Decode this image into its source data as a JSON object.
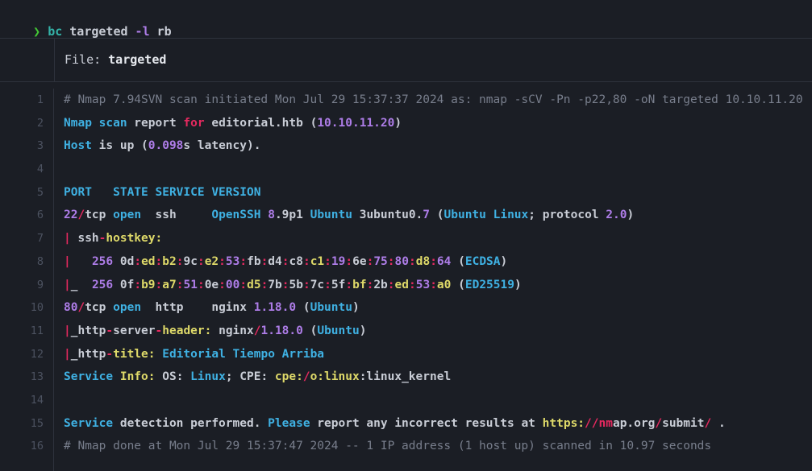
{
  "colors": {
    "background": "#1b1e25",
    "border": "#2e323c",
    "white": "#c9cdd6",
    "gray": "#787e8c",
    "dim": "#4c5260",
    "cyan": "#3fb1e3",
    "purple": "#ae7de8",
    "pink": "#e5295f",
    "yellow": "#ded969",
    "teal": "#34b3a8",
    "green": "#43c735"
  },
  "prompt": {
    "symbol": "❯ ",
    "tokens": [
      [
        "teal",
        "bc "
      ],
      [
        "white",
        "targeted",
        "u"
      ],
      [
        "purple",
        " -l"
      ],
      [
        "white",
        " rb"
      ]
    ]
  },
  "header": {
    "label": "File:",
    "filename": "targeted"
  },
  "code": {
    "lines": [
      {
        "n": "1",
        "comment": true,
        "tokens": [
          [
            "gray",
            "# Nmap 7.94SVN scan initiated Mon Jul 29 15:37:37 2024 as: nmap -sCV -Pn -p22,80 -oN targeted 10.10.11.20"
          ]
        ]
      },
      {
        "n": "2",
        "comment": false,
        "tokens": [
          [
            "cyan",
            "Nmap scan"
          ],
          [
            "white",
            " report "
          ],
          [
            "pink",
            "for"
          ],
          [
            "white",
            " editorial.htb ("
          ],
          [
            "purple",
            "10.10.11.20"
          ],
          [
            "white",
            ")"
          ]
        ]
      },
      {
        "n": "3",
        "comment": false,
        "tokens": [
          [
            "cyan",
            "Host"
          ],
          [
            "white",
            " is up ("
          ],
          [
            "purple",
            "0.098"
          ],
          [
            "white",
            "s latency)."
          ]
        ]
      },
      {
        "n": "4",
        "comment": false,
        "tokens": []
      },
      {
        "n": "5",
        "comment": false,
        "tokens": [
          [
            "cyan",
            "PORT   STATE SERVICE VERSION"
          ]
        ]
      },
      {
        "n": "6",
        "comment": false,
        "tokens": [
          [
            "purple",
            "22"
          ],
          [
            "pink",
            "/"
          ],
          [
            "white",
            "tcp "
          ],
          [
            "cyan",
            "open"
          ],
          [
            "white",
            "  ssh     "
          ],
          [
            "cyan",
            "OpenSSH"
          ],
          [
            "white",
            " "
          ],
          [
            "purple",
            "8"
          ],
          [
            "white",
            ".9p1 "
          ],
          [
            "cyan",
            "Ubuntu"
          ],
          [
            "white",
            " 3ubuntu0."
          ],
          [
            "purple",
            "7"
          ],
          [
            "white",
            " ("
          ],
          [
            "cyan",
            "Ubuntu Linux"
          ],
          [
            "white",
            "; protocol "
          ],
          [
            "purple",
            "2.0"
          ],
          [
            "white",
            ")"
          ]
        ]
      },
      {
        "n": "7",
        "comment": false,
        "tokens": [
          [
            "pink",
            "|"
          ],
          [
            "white",
            " ssh"
          ],
          [
            "pink",
            "-"
          ],
          [
            "yellow",
            "hostkey:"
          ]
        ]
      },
      {
        "n": "8",
        "comment": false,
        "tokens": [
          [
            "pink",
            "|"
          ],
          [
            "white",
            "   "
          ],
          [
            "purple",
            "256"
          ],
          [
            "white",
            " 0d"
          ],
          [
            "pink",
            ":"
          ],
          [
            "yellow",
            "ed"
          ],
          [
            "pink",
            ":"
          ],
          [
            "yellow",
            "b2"
          ],
          [
            "pink",
            ":"
          ],
          [
            "white",
            "9c"
          ],
          [
            "pink",
            ":"
          ],
          [
            "yellow",
            "e2"
          ],
          [
            "pink",
            ":"
          ],
          [
            "purple",
            "53"
          ],
          [
            "pink",
            ":"
          ],
          [
            "white",
            "fb"
          ],
          [
            "pink",
            ":"
          ],
          [
            "white",
            "d4"
          ],
          [
            "pink",
            ":"
          ],
          [
            "white",
            "c8"
          ],
          [
            "pink",
            ":"
          ],
          [
            "yellow",
            "c1"
          ],
          [
            "pink",
            ":"
          ],
          [
            "purple",
            "19"
          ],
          [
            "pink",
            ":"
          ],
          [
            "white",
            "6e"
          ],
          [
            "pink",
            ":"
          ],
          [
            "purple",
            "75"
          ],
          [
            "pink",
            ":"
          ],
          [
            "purple",
            "80"
          ],
          [
            "pink",
            ":"
          ],
          [
            "yellow",
            "d8"
          ],
          [
            "pink",
            ":"
          ],
          [
            "purple",
            "64"
          ],
          [
            "white",
            " ("
          ],
          [
            "cyan",
            "ECDSA"
          ],
          [
            "white",
            ")"
          ]
        ]
      },
      {
        "n": "9",
        "comment": false,
        "tokens": [
          [
            "pink",
            "|"
          ],
          [
            "white",
            "_  "
          ],
          [
            "purple",
            "256"
          ],
          [
            "white",
            " 0f"
          ],
          [
            "pink",
            ":"
          ],
          [
            "yellow",
            "b9"
          ],
          [
            "pink",
            ":"
          ],
          [
            "yellow",
            "a7"
          ],
          [
            "pink",
            ":"
          ],
          [
            "purple",
            "51"
          ],
          [
            "pink",
            ":"
          ],
          [
            "white",
            "0e"
          ],
          [
            "pink",
            ":"
          ],
          [
            "purple",
            "00"
          ],
          [
            "pink",
            ":"
          ],
          [
            "yellow",
            "d5"
          ],
          [
            "pink",
            ":"
          ],
          [
            "white",
            "7b"
          ],
          [
            "pink",
            ":"
          ],
          [
            "white",
            "5b"
          ],
          [
            "pink",
            ":"
          ],
          [
            "white",
            "7c"
          ],
          [
            "pink",
            ":"
          ],
          [
            "white",
            "5f"
          ],
          [
            "pink",
            ":"
          ],
          [
            "yellow",
            "bf"
          ],
          [
            "pink",
            ":"
          ],
          [
            "white",
            "2b"
          ],
          [
            "pink",
            ":"
          ],
          [
            "yellow",
            "ed"
          ],
          [
            "pink",
            ":"
          ],
          [
            "purple",
            "53"
          ],
          [
            "pink",
            ":"
          ],
          [
            "yellow",
            "a0"
          ],
          [
            "white",
            " ("
          ],
          [
            "cyan",
            "ED25519"
          ],
          [
            "white",
            ")"
          ]
        ]
      },
      {
        "n": "10",
        "comment": false,
        "tokens": [
          [
            "purple",
            "80"
          ],
          [
            "pink",
            "/"
          ],
          [
            "white",
            "tcp "
          ],
          [
            "cyan",
            "open"
          ],
          [
            "white",
            "  http    nginx "
          ],
          [
            "purple",
            "1.18.0"
          ],
          [
            "white",
            " ("
          ],
          [
            "cyan",
            "Ubuntu"
          ],
          [
            "white",
            ")"
          ]
        ]
      },
      {
        "n": "11",
        "comment": false,
        "tokens": [
          [
            "pink",
            "|"
          ],
          [
            "white",
            "_http"
          ],
          [
            "pink",
            "-"
          ],
          [
            "white",
            "server"
          ],
          [
            "pink",
            "-"
          ],
          [
            "yellow",
            "header:"
          ],
          [
            "white",
            " nginx"
          ],
          [
            "pink",
            "/"
          ],
          [
            "purple",
            "1.18.0"
          ],
          [
            "white",
            " ("
          ],
          [
            "cyan",
            "Ubuntu"
          ],
          [
            "white",
            ")"
          ]
        ]
      },
      {
        "n": "12",
        "comment": false,
        "tokens": [
          [
            "pink",
            "|"
          ],
          [
            "white",
            "_http"
          ],
          [
            "pink",
            "-"
          ],
          [
            "yellow",
            "title:"
          ],
          [
            "cyan",
            " Editorial Tiempo Arriba"
          ]
        ]
      },
      {
        "n": "13",
        "comment": false,
        "tokens": [
          [
            "cyan",
            "Service"
          ],
          [
            "white",
            " "
          ],
          [
            "yellow",
            "Info:"
          ],
          [
            "white",
            " OS: "
          ],
          [
            "cyan",
            "Linux"
          ],
          [
            "white",
            "; CPE: "
          ],
          [
            "yellow",
            "cpe:"
          ],
          [
            "pink",
            "/"
          ],
          [
            "yellow",
            "o:linux"
          ],
          [
            "white",
            ":linux_kernel"
          ]
        ]
      },
      {
        "n": "14",
        "comment": false,
        "tokens": []
      },
      {
        "n": "15",
        "comment": false,
        "tokens": [
          [
            "cyan",
            "Service"
          ],
          [
            "white",
            " detection performed. "
          ],
          [
            "cyan",
            "Please"
          ],
          [
            "white",
            " report any incorrect results at "
          ],
          [
            "yellow",
            "https:"
          ],
          [
            "pink",
            "//nm"
          ],
          [
            "white",
            "ap.org"
          ],
          [
            "pink",
            "/"
          ],
          [
            "white",
            "submit"
          ],
          [
            "pink",
            "/"
          ],
          [
            "white",
            " ."
          ]
        ]
      },
      {
        "n": "16",
        "comment": true,
        "tokens": [
          [
            "gray",
            "# Nmap done at Mon Jul 29 15:37:47 2024 -- 1 IP address (1 host up) scanned in 10.97 seconds"
          ]
        ]
      }
    ]
  }
}
